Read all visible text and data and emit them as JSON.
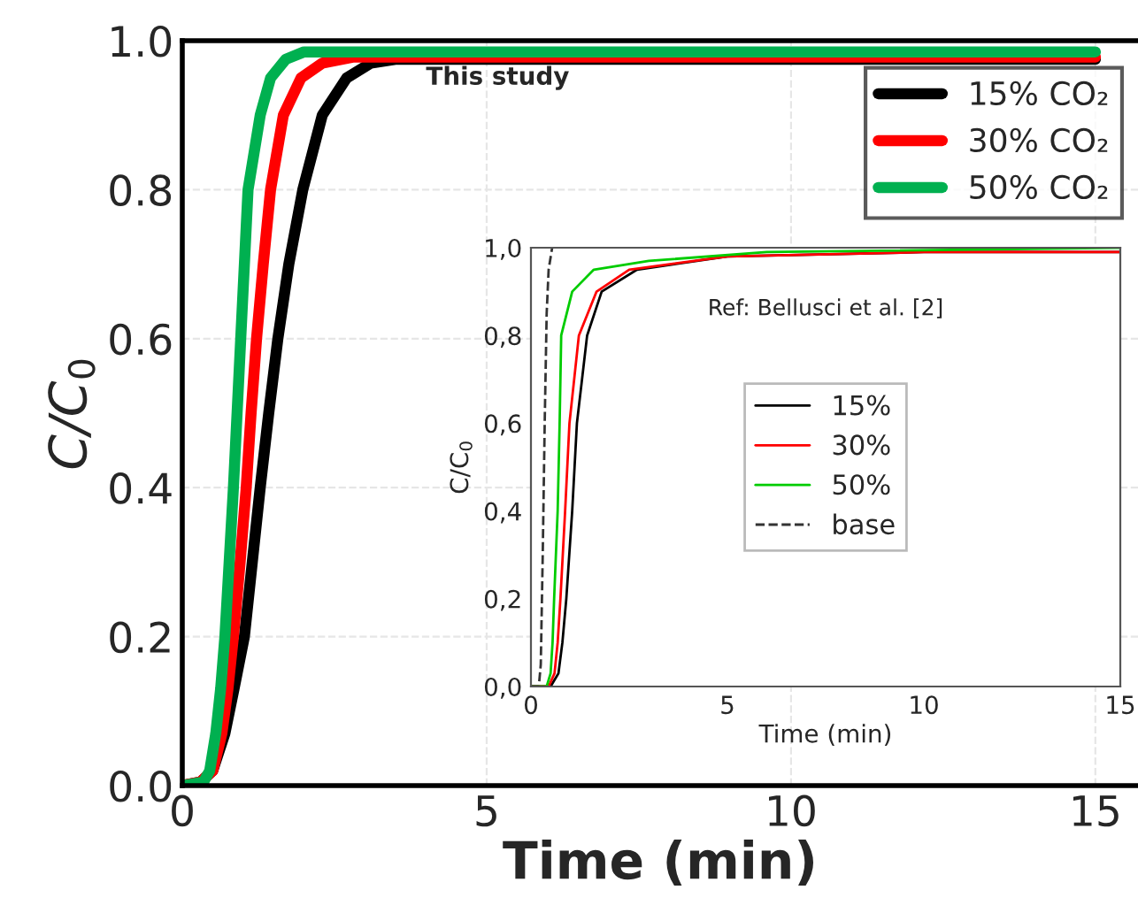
{
  "chart_data": [
    {
      "type": "line",
      "xlabel": "Time (min)",
      "ylabel": "C/C$_{0}$",
      "annotations": [
        "This study"
      ],
      "xlim": [
        0,
        15.7
      ],
      "ylim": [
        0,
        1.0
      ],
      "xticks": [
        0,
        5,
        10,
        15
      ],
      "yticks": [
        {
          "value": 0,
          "label": "0.0"
        },
        {
          "value": 0.2,
          "label": "0.2"
        },
        {
          "value": 0.4,
          "label": "0.4"
        },
        {
          "value": 0.6,
          "label": "0.6"
        },
        {
          "value": 0.8,
          "label": "0.8"
        },
        {
          "value": 1.0,
          "label": "1.0"
        }
      ],
      "grid": true,
      "legend": "top right",
      "line_style": "solid",
      "marker": "none",
      "series": [
        {
          "name": "15% CO₂",
          "color": "#000000",
          "x": [
            0,
            0.3,
            0.5,
            0.7,
            0.85,
            1.02,
            1.15,
            1.28,
            1.42,
            1.57,
            1.75,
            1.98,
            2.3,
            2.7,
            3.1,
            3.5,
            5,
            10,
            15
          ],
          "values": [
            0,
            0.005,
            0.02,
            0.07,
            0.13,
            0.2,
            0.3,
            0.4,
            0.5,
            0.6,
            0.7,
            0.8,
            0.9,
            0.95,
            0.97,
            0.975,
            0.975,
            0.975,
            0.975
          ]
        },
        {
          "name": "30% CO₂",
          "color": "#ff0000",
          "x": [
            0,
            0.3,
            0.5,
            0.65,
            0.75,
            0.84,
            0.95,
            1.05,
            1.13,
            1.22,
            1.33,
            1.45,
            1.66,
            1.95,
            2.3,
            2.8,
            5,
            10,
            15
          ],
          "values": [
            0,
            0.005,
            0.02,
            0.07,
            0.13,
            0.2,
            0.3,
            0.4,
            0.5,
            0.6,
            0.7,
            0.8,
            0.9,
            0.95,
            0.97,
            0.978,
            0.978,
            0.978,
            0.978
          ]
        },
        {
          "name": "50% CO₂",
          "color": "#00b050",
          "x": [
            0,
            0.35,
            0.45,
            0.55,
            0.63,
            0.7,
            0.77,
            0.84,
            0.9,
            0.96,
            1.02,
            1.08,
            1.28,
            1.45,
            1.7,
            2.0,
            5,
            10,
            15
          ],
          "values": [
            0,
            0.005,
            0.02,
            0.07,
            0.13,
            0.2,
            0.3,
            0.4,
            0.5,
            0.6,
            0.7,
            0.8,
            0.9,
            0.95,
            0.975,
            0.985,
            0.985,
            0.985,
            0.985
          ]
        }
      ]
    },
    {
      "type": "line",
      "xlabel": "Time (min)",
      "ylabel": "C/C$_{0}$",
      "annotations": [
        "Ref: Bellusci et al. [2]"
      ],
      "xlim": [
        0,
        15
      ],
      "ylim": [
        0,
        1.0
      ],
      "xticks": [
        0,
        5,
        10,
        15
      ],
      "yticks": [
        {
          "value": 0,
          "label": "0,0"
        },
        {
          "value": 0.2,
          "label": "0,2"
        },
        {
          "value": 0.4,
          "label": "0,4"
        },
        {
          "value": 0.6,
          "label": "0,6"
        },
        {
          "value": 0.8,
          "label": "0,8"
        },
        {
          "value": 1.0,
          "label": "1,0"
        }
      ],
      "legend": "center",
      "marker": "none",
      "series": [
        {
          "name": "15%",
          "color": "#000000",
          "line_style": "solid",
          "x": [
            0,
            0.5,
            0.7,
            0.8,
            0.9,
            1.05,
            1.17,
            1.3,
            1.43,
            1.8,
            2.7,
            5,
            10,
            15
          ],
          "values": [
            0,
            0,
            0.03,
            0.1,
            0.2,
            0.4,
            0.6,
            0.7,
            0.8,
            0.9,
            0.95,
            0.98,
            0.99,
            0.99
          ]
        },
        {
          "name": "30%",
          "color": "#ff0000",
          "line_style": "solid",
          "x": [
            0,
            0.45,
            0.6,
            0.68,
            0.75,
            0.87,
            0.98,
            1.1,
            1.22,
            1.67,
            2.5,
            5,
            10,
            15
          ],
          "values": [
            0,
            0,
            0.03,
            0.1,
            0.2,
            0.4,
            0.6,
            0.7,
            0.8,
            0.9,
            0.95,
            0.98,
            0.99,
            0.99
          ]
        },
        {
          "name": "50%",
          "color": "#00cc00",
          "line_style": "solid",
          "x": [
            0,
            0.4,
            0.5,
            0.55,
            0.59,
            0.68,
            0.73,
            0.77,
            1.05,
            1.6,
            3,
            6,
            15
          ],
          "values": [
            0,
            0,
            0.03,
            0.1,
            0.2,
            0.4,
            0.6,
            0.8,
            0.9,
            0.95,
            0.97,
            0.99,
            1.0
          ]
        },
        {
          "name": "base",
          "color": "#333333",
          "line_style": "dashed",
          "x": [
            0,
            0.2,
            0.25,
            0.3,
            0.35,
            0.4,
            0.45,
            0.54
          ],
          "values": [
            0,
            0,
            0.05,
            0.3,
            0.6,
            0.85,
            0.95,
            1.0
          ]
        }
      ]
    }
  ]
}
